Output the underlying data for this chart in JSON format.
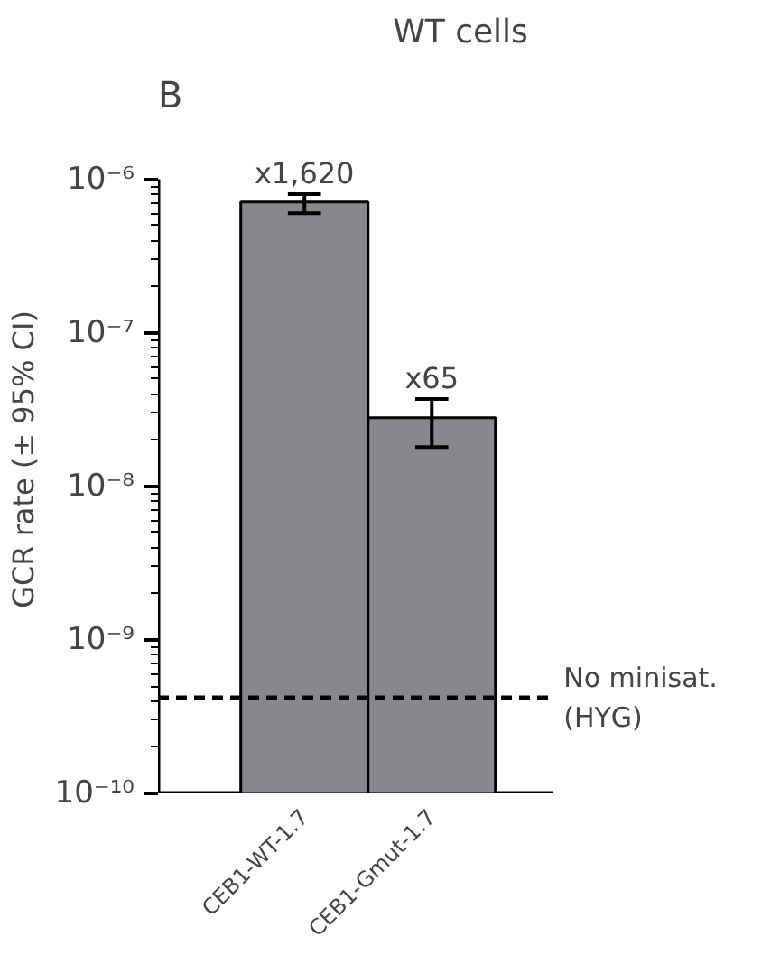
{
  "chart_data": {
    "type": "bar",
    "title": "WT cells",
    "ylabel": "GCR rate (± 95% CI)",
    "categories": [
      "CEB1-WT-1.7",
      "CEB1-Gmut-1.7"
    ],
    "values": [
      7.1e-07,
      2.8e-08
    ],
    "color": "#87888c",
    "errors": [
      [
        6e-07,
        8e-07
      ],
      [
        1.8e-08,
        3.7e-08
      ]
    ],
    "value_labels": [
      "x1,620",
      "x65"
    ],
    "log": true,
    "ylim": [
      1e-10,
      1e-06
    ],
    "yticks": [
      {
        "value": 1e-10,
        "label": "10⁻¹⁰"
      },
      {
        "value": 1e-09,
        "label": "10⁻⁹"
      },
      {
        "value": 1e-08,
        "label": "10⁻⁸"
      },
      {
        "value": 1e-07,
        "label": "10⁻⁷"
      },
      {
        "value": 1e-06,
        "label": "10⁻⁶"
      }
    ],
    "ref_lines": [
      {
        "axis": "y",
        "value": 4.2e-10,
        "label": "No minisat.\n(HYG)",
        "line_style": "dashed",
        "color": "#000000"
      }
    ],
    "annotations": [
      "B"
    ],
    "grid": false
  }
}
